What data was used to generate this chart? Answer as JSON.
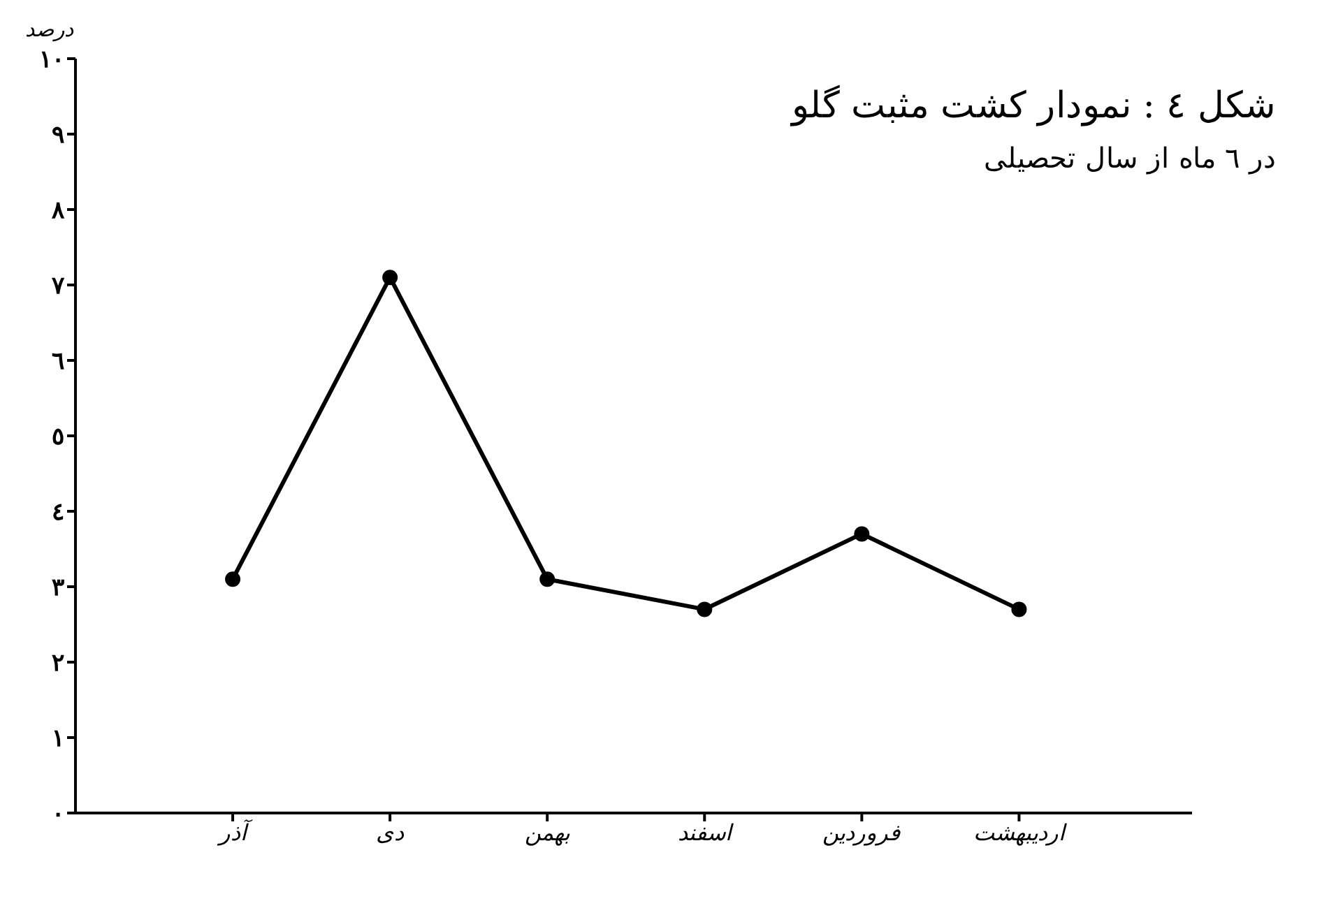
{
  "chart_data": {
    "type": "line",
    "title": "شکل ٤ : نمودار کشت مثبت گلو",
    "subtitle": "در ٦ ماه از سال تحصیلی",
    "ylabel": "درصد",
    "categories": [
      "آذر",
      "دی",
      "بهمن",
      "اسفند",
      "فروردین",
      "اردیبهشت"
    ],
    "series": [
      {
        "color": "#000000",
        "values": [
          3.1,
          7.1,
          3.1,
          2.7,
          3.7,
          2.7
        ]
      }
    ],
    "ylim": [
      0,
      10
    ],
    "yticks": [
      {
        "value": 0,
        "label": "٠"
      },
      {
        "value": 1,
        "label": "١"
      },
      {
        "value": 2,
        "label": "٢"
      },
      {
        "value": 3,
        "label": "٣"
      },
      {
        "value": 4,
        "label": "٤"
      },
      {
        "value": 5,
        "label": "٥"
      },
      {
        "value": 6,
        "label": "٦"
      },
      {
        "value": 7,
        "label": "٧"
      },
      {
        "value": 8,
        "label": "٨"
      },
      {
        "value": 9,
        "label": "٩"
      },
      {
        "value": 10,
        "label": "١٠"
      }
    ],
    "grid": false,
    "legend": false,
    "marker": "circle",
    "line_style": "solid"
  }
}
